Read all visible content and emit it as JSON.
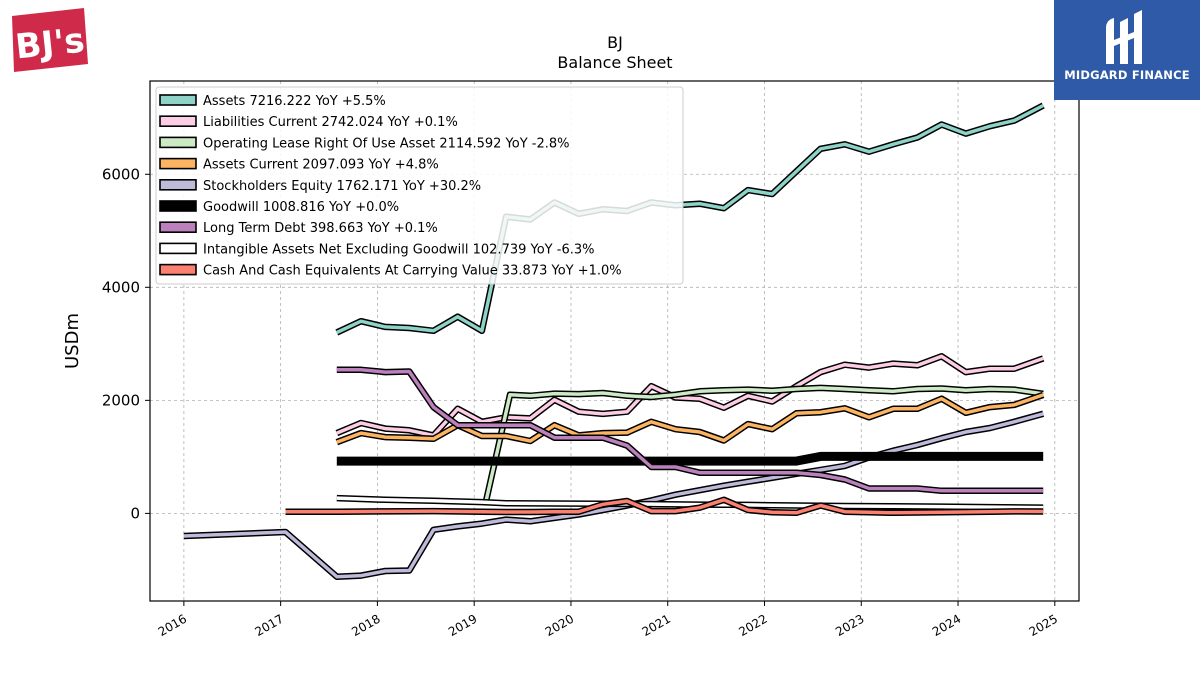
{
  "chart_data": {
    "type": "line",
    "title": "BJ",
    "subtitle": "Balance  Sheet",
    "ylabel": "USDm",
    "xlabel": "",
    "xlim": [
      2015.65,
      2025.25
    ],
    "ylim": [
      -1550,
      7650
    ],
    "x_ticks": [
      2016,
      2017,
      2018,
      2019,
      2020,
      2021,
      2022,
      2023,
      2024,
      2025
    ],
    "y_ticks": [
      0,
      2000,
      4000,
      6000
    ],
    "grid": true,
    "legend_position": "top-left",
    "series": [
      {
        "name": "Assets",
        "legend": "Assets  7216.222 YoY +5.5%",
        "color": "#8dd3c7",
        "x": [
          2017.58,
          2017.83,
          2018.08,
          2018.33,
          2018.58,
          2018.83,
          2019.08,
          2019.33,
          2019.58,
          2019.83,
          2020.08,
          2020.33,
          2020.58,
          2020.83,
          2021.08,
          2021.33,
          2021.58,
          2021.83,
          2022.08,
          2022.33,
          2022.58,
          2022.83,
          2023.08,
          2023.33,
          2023.58,
          2023.83,
          2024.08,
          2024.33,
          2024.58,
          2024.88
        ],
        "y": [
          3200,
          3400,
          3300,
          3280,
          3230,
          3480,
          3230,
          5250,
          5200,
          5500,
          5300,
          5380,
          5350,
          5500,
          5450,
          5480,
          5400,
          5720,
          5650,
          6050,
          6450,
          6530,
          6400,
          6530,
          6650,
          6880,
          6720,
          6850,
          6950,
          7216
        ]
      },
      {
        "name": "Liabilities Current",
        "legend": "Liabilities Current  2742.024 YoY +0.1%",
        "color": "#fccde5",
        "x": [
          2017.58,
          2017.83,
          2018.08,
          2018.33,
          2018.58,
          2018.83,
          2019.08,
          2019.33,
          2019.58,
          2019.83,
          2020.08,
          2020.33,
          2020.58,
          2020.83,
          2021.08,
          2021.33,
          2021.58,
          2021.83,
          2022.08,
          2022.33,
          2022.58,
          2022.83,
          2023.08,
          2023.33,
          2023.58,
          2023.83,
          2024.08,
          2024.33,
          2024.58,
          2024.88
        ],
        "y": [
          1420,
          1600,
          1500,
          1470,
          1380,
          1850,
          1620,
          1700,
          1680,
          2010,
          1800,
          1760,
          1800,
          2250,
          2050,
          2030,
          1870,
          2080,
          1980,
          2250,
          2500,
          2630,
          2580,
          2650,
          2620,
          2780,
          2500,
          2560,
          2560,
          2742
        ]
      },
      {
        "name": "Operating Lease Right Of Use Asset",
        "legend": "Operating Lease Right Of Use Asset  2114.592 YoY -2.8%",
        "color": "#ccebc5",
        "x": [
          2019.12,
          2019.37,
          2019.58,
          2019.83,
          2020.08,
          2020.33,
          2020.58,
          2020.83,
          2021.08,
          2021.33,
          2021.58,
          2021.83,
          2022.08,
          2022.33,
          2022.58,
          2022.83,
          2023.08,
          2023.33,
          2023.58,
          2023.83,
          2024.08,
          2024.33,
          2024.58,
          2024.88
        ],
        "y": [
          200,
          2100,
          2080,
          2120,
          2110,
          2130,
          2080,
          2060,
          2100,
          2160,
          2180,
          2190,
          2170,
          2200,
          2220,
          2200,
          2180,
          2160,
          2200,
          2210,
          2180,
          2200,
          2190,
          2115
        ]
      },
      {
        "name": "Assets Current",
        "legend": "Assets Current  2097.093 YoY +4.8%",
        "color": "#fdb462",
        "x": [
          2017.58,
          2017.83,
          2018.08,
          2018.33,
          2018.58,
          2018.83,
          2019.08,
          2019.33,
          2019.58,
          2019.83,
          2020.08,
          2020.33,
          2020.58,
          2020.83,
          2021.08,
          2021.33,
          2021.58,
          2021.83,
          2022.08,
          2022.33,
          2022.58,
          2022.83,
          2023.08,
          2023.33,
          2023.58,
          2023.83,
          2024.08,
          2024.33,
          2024.58,
          2024.88
        ],
        "y": [
          1260,
          1420,
          1350,
          1340,
          1320,
          1560,
          1370,
          1370,
          1280,
          1560,
          1380,
          1420,
          1430,
          1620,
          1490,
          1440,
          1290,
          1580,
          1490,
          1770,
          1790,
          1860,
          1700,
          1850,
          1850,
          2030,
          1780,
          1880,
          1920,
          2097
        ]
      },
      {
        "name": "Stockholders Equity",
        "legend": "Stockholders Equity  1762.171 YoY +30.2%",
        "color": "#bebada",
        "x": [
          2016.0,
          2017.05,
          2017.58,
          2017.83,
          2018.08,
          2018.33,
          2018.58,
          2018.83,
          2019.08,
          2019.33,
          2019.58,
          2019.83,
          2020.08,
          2020.33,
          2020.58,
          2020.83,
          2021.08,
          2021.33,
          2021.58,
          2021.83,
          2022.08,
          2022.33,
          2022.58,
          2022.83,
          2023.08,
          2023.33,
          2023.58,
          2023.83,
          2024.08,
          2024.33,
          2024.58,
          2024.88
        ],
        "y": [
          -400,
          -330,
          -1120,
          -1100,
          -1020,
          -1010,
          -290,
          -230,
          -180,
          -110,
          -140,
          -80,
          -20,
          60,
          140,
          230,
          330,
          410,
          490,
          560,
          630,
          700,
          770,
          840,
          990,
          1110,
          1210,
          1330,
          1440,
          1510,
          1620,
          1762
        ]
      },
      {
        "name": "Goodwill",
        "legend": "Goodwill  1008.816 YoY +0.0%",
        "color": "#000000",
        "x": [
          2017.58,
          2018.08,
          2018.58,
          2019.08,
          2019.58,
          2020.08,
          2020.58,
          2021.08,
          2021.58,
          2022.08,
          2022.33,
          2022.58,
          2022.83,
          2023.08,
          2023.58,
          2024.08,
          2024.58,
          2024.88
        ],
        "y": [
          925,
          925,
          925,
          925,
          925,
          925,
          925,
          925,
          925,
          925,
          925,
          1008,
          1008,
          1008,
          1008,
          1008,
          1008,
          1008
        ]
      },
      {
        "name": "Long Term Debt",
        "legend": "Long Term Debt  398.663 YoY +0.1%",
        "color": "#bc80bd",
        "x": [
          2017.58,
          2017.83,
          2018.08,
          2018.33,
          2018.58,
          2018.83,
          2019.08,
          2019.33,
          2019.58,
          2019.83,
          2020.08,
          2020.33,
          2020.58,
          2020.83,
          2021.08,
          2021.33,
          2021.58,
          2021.83,
          2022.08,
          2022.33,
          2022.58,
          2022.83,
          2023.08,
          2023.33,
          2023.58,
          2023.83,
          2024.08,
          2024.33,
          2024.58,
          2024.88
        ],
        "y": [
          2540,
          2540,
          2500,
          2510,
          1880,
          1560,
          1560,
          1560,
          1560,
          1340,
          1340,
          1340,
          1200,
          820,
          820,
          720,
          720,
          720,
          720,
          720,
          680,
          600,
          440,
          440,
          440,
          400,
          400,
          400,
          400,
          399
        ]
      },
      {
        "name": "Intangible Assets Net Excluding Goodwill",
        "legend": "Intangible Assets Net Excluding Goodwill  102.739 YoY -6.3%",
        "color": "#ffffff",
        "x": [
          2017.58,
          2018.08,
          2018.58,
          2019.08,
          2019.33,
          2019.83,
          2020.33,
          2020.83,
          2021.33,
          2021.83,
          2022.33,
          2022.83,
          2023.33,
          2023.83,
          2024.33,
          2024.88
        ],
        "y": [
          270,
          240,
          225,
          200,
          180,
          175,
          170,
          165,
          155,
          150,
          140,
          130,
          125,
          120,
          112,
          103
        ]
      },
      {
        "name": "Cash And Cash Equivalents At Carrying Value",
        "legend": "Cash And Cash Equivalents At Carrying Value  33.873 YoY +1.0%",
        "color": "#fb8072",
        "x": [
          2017.05,
          2017.58,
          2018.08,
          2018.58,
          2019.08,
          2019.33,
          2019.58,
          2019.83,
          2020.08,
          2020.33,
          2020.58,
          2020.83,
          2021.08,
          2021.33,
          2021.58,
          2021.83,
          2022.08,
          2022.33,
          2022.58,
          2022.83,
          2023.08,
          2023.33,
          2023.58,
          2023.83,
          2024.08,
          2024.33,
          2024.58,
          2024.88
        ],
        "y": [
          30,
          30,
          35,
          40,
          30,
          25,
          25,
          30,
          30,
          160,
          220,
          40,
          40,
          100,
          240,
          60,
          20,
          10,
          140,
          30,
          20,
          10,
          15,
          20,
          25,
          30,
          35,
          34
        ]
      }
    ]
  },
  "logos": {
    "brand_text": "BJ's",
    "partner_text": "MIDGARD FINANCE"
  }
}
